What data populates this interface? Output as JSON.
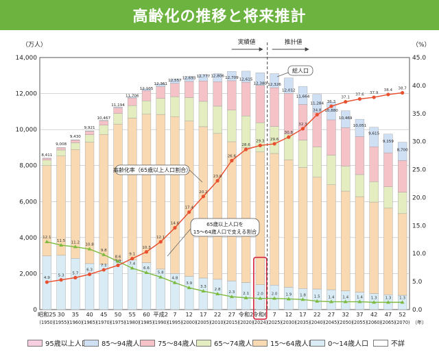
{
  "title": "高齢化の推移と将来推計",
  "chart_data": {
    "type": "bar+line",
    "y_left_unit": "（万人）",
    "y_right_unit": "（%）",
    "y_left_ticks": [
      "0",
      "2,000",
      "4,000",
      "6,000",
      "8,000",
      "10,000",
      "12,000",
      "14,000"
    ],
    "y_right_ticks": [
      "0.0",
      "5.0",
      "10.0",
      "15.0",
      "20.0",
      "25.0",
      "30.0",
      "35.0",
      "40.0",
      "45.0"
    ],
    "ylim_left": [
      0,
      14000
    ],
    "ylim_right": [
      0,
      45
    ],
    "x_unit": "（年）",
    "actual_label": "実績値",
    "projection_label": "推計値",
    "categories": [
      {
        "era": "昭和25",
        "year": "(1950)"
      },
      {
        "era": "30",
        "year": "(1955)"
      },
      {
        "era": "35",
        "year": "(1960)"
      },
      {
        "era": "40",
        "year": "(1965)"
      },
      {
        "era": "45",
        "year": "(1970)"
      },
      {
        "era": "50",
        "year": "(1975)"
      },
      {
        "era": "55",
        "year": "(1980)"
      },
      {
        "era": "60",
        "year": "(1985)"
      },
      {
        "era": "平成2",
        "year": "(1990)"
      },
      {
        "era": "7",
        "year": "(1995)"
      },
      {
        "era": "12",
        "year": "(2000)"
      },
      {
        "era": "17",
        "year": "(2005)"
      },
      {
        "era": "22",
        "year": "(2010)"
      },
      {
        "era": "27",
        "year": "(2015)"
      },
      {
        "era": "令和2",
        "year": "(2020)"
      },
      {
        "era": "令和6",
        "year": "(2024)"
      },
      {
        "era": "7",
        "year": "(2025)"
      },
      {
        "era": "12",
        "year": "(2030)"
      },
      {
        "era": "17",
        "year": "(2035)"
      },
      {
        "era": "22",
        "year": "(2040)"
      },
      {
        "era": "27",
        "year": "(2045)"
      },
      {
        "era": "32",
        "year": "(2050)"
      },
      {
        "era": "37",
        "year": "(2055)"
      },
      {
        "era": "42",
        "year": "(2060)"
      },
      {
        "era": "47",
        "year": "(2065)"
      },
      {
        "era": "52",
        "year": "(2070)"
      }
    ],
    "totals": [
      8411,
      9008,
      9430,
      9921,
      10467,
      11194,
      11706,
      12105,
      12361,
      12557,
      12693,
      12777,
      12806,
      12709,
      12615,
      12380,
      12326,
      12012,
      11664,
      11284,
      10880,
      10469,
      10051,
      9615,
      9159,
      8700
    ],
    "total_labels": [
      "8,411",
      "9,008",
      "9,430",
      "9,921",
      "10,467",
      "11,194",
      "11,706",
      "12,105",
      "12,361",
      "12,557",
      "12,693",
      "12,777",
      "12,806",
      "12,709",
      "12,615",
      "12,380",
      "12,326",
      "12,012",
      "11,664",
      "11,284",
      "10,880",
      "10,469",
      "10,051",
      "9,615",
      "9,159",
      "8,700"
    ],
    "series": [
      {
        "name": "不詳",
        "color": "#ffffff",
        "values": [
          0,
          0,
          0,
          0,
          0,
          0,
          0,
          0,
          0,
          0,
          0,
          0,
          0,
          0,
          0,
          0,
          0,
          0,
          0,
          0,
          0,
          0,
          0,
          0,
          0,
          0
        ]
      },
      {
        "name": "95歳以上人口",
        "color": "#f7cde0",
        "values": [
          0,
          0,
          0,
          0,
          0,
          0,
          0,
          0,
          0,
          0,
          0,
          0,
          0,
          0,
          0,
          0,
          0,
          0,
          0,
          0,
          0,
          0,
          0,
          0,
          0,
          0
        ]
      },
      {
        "name": "85～94歳人口",
        "color": "#cfe0f5",
        "values": [
          10,
          14,
          16,
          21,
          34,
          48,
          69,
          105,
          161,
          229,
          283,
          356,
          452,
          520,
          614,
          700,
          780,
          860,
          1004,
          1004,
          972,
          943,
          965,
          1087,
          1044,
          1020
        ]
      },
      {
        "name": "75～84歳人口",
        "color": "#f5c2c7",
        "values": [
          99,
          119,
          148,
          191,
          240,
          312,
          422,
          566,
          655,
          742,
          901,
          1133,
          1355,
          1632,
          1870,
          2076,
          2155,
          2261,
          1981,
          1916,
          1962,
          2140,
          2110,
          1939,
          1885,
          1760
        ]
      },
      {
        "name": "65～74歳人口",
        "color": "#e3edc0",
        "values": [
          309,
          335,
          376,
          418,
          516,
          592,
          699,
          739,
          892,
          1109,
          1301,
          1407,
          1517,
          1755,
          1747,
          1624,
          1497,
          1428,
          1522,
          1681,
          1643,
          1383,
          1224,
          1133,
          1186,
          1187
        ]
      },
      {
        "name": "15～64歳人口",
        "color": "#f9d9b2",
        "values": [
          5017,
          5517,
          6047,
          6744,
          7212,
          7581,
          7883,
          8251,
          8590,
          8716,
          8622,
          8409,
          8103,
          7728,
          7509,
          7373,
          7310,
          7076,
          6722,
          6213,
          5832,
          5540,
          5307,
          5078,
          4809,
          4535
        ]
      },
      {
        "name": "0～14歳人口",
        "color": "#d9ecf5",
        "values": [
          2979,
          3012,
          2843,
          2553,
          2515,
          2722,
          2751,
          2603,
          2249,
          2001,
          1847,
          1752,
          1680,
          1595,
          1503,
          1383,
          1363,
          1240,
          1169,
          1142,
          1103,
          1041,
          966,
          893,
          826,
          797
        ]
      }
    ],
    "aging_rate_name": "高齢化率（65歳以上人口割合）",
    "aging_rate": [
      4.9,
      5.3,
      5.7,
      6.3,
      7.1,
      7.9,
      9.1,
      10.3,
      12.1,
      14.6,
      17.4,
      20.2,
      23.0,
      26.6,
      28.6,
      29.3,
      29.6,
      30.8,
      32.3,
      34.8,
      36.3,
      37.1,
      37.6,
      37.9,
      38.4,
      38.7
    ],
    "aging_rate_labels": [
      "4.9",
      "5.3",
      "5.7",
      "6.3",
      "7.1",
      "7.9",
      "9.1",
      "10.3",
      "12.1",
      "14.6",
      "17.4",
      "20.2",
      "23.0",
      "26.6",
      "28.6",
      "29.3",
      "29.6",
      "30.8",
      "32.3",
      "34.8",
      "36.3",
      "37.1",
      "37.6",
      "37.9",
      "38.4",
      "38.7"
    ],
    "support_ratio_name": "65歳以上人口を15～64歳人口で支える割合",
    "support_ratio": [
      12.1,
      11.5,
      11.2,
      10.8,
      9.8,
      8.6,
      7.4,
      6.6,
      5.8,
      4.8,
      3.9,
      3.3,
      2.8,
      2.3,
      2.1,
      2.0,
      2.0,
      1.9,
      1.8,
      1.5,
      1.4,
      1.4,
      1.4,
      1.3,
      1.3,
      1.3
    ],
    "support_ratio_labels": [
      "12.1",
      "11.5",
      "11.2",
      "10.8",
      "9.8",
      "8.6",
      "7.4",
      "6.6",
      "5.8",
      "4.8",
      "3.9",
      "3.3",
      "2.8",
      "2.3",
      "2.1",
      "2.0",
      "2.0",
      "1.9",
      "1.8",
      "1.5",
      "1.4",
      "1.4",
      "1.4",
      "1.3",
      "1.3",
      "1.3"
    ],
    "total_population_callout": "総人口",
    "highlight_index": 15
  },
  "legend": [
    {
      "label": "95歳以上人口",
      "color": "#f7cde0"
    },
    {
      "label": "85～94歳人口",
      "color": "#cfe0f5"
    },
    {
      "label": "75～84歳人口",
      "color": "#f5c2c7"
    },
    {
      "label": "65～74歳人口",
      "color": "#e3edc0"
    },
    {
      "label": "15～64歳人口",
      "color": "#f9d9b2"
    },
    {
      "label": "0～14歳人口",
      "color": "#d9ecf5"
    },
    {
      "label": "不詳",
      "color": "#ffffff"
    }
  ],
  "colors": {
    "banner": "#6cb33f",
    "aging_line": "#e8502f",
    "support_line": "#7cba3f",
    "highlight": "#d6334a",
    "arrow": "#4a4a4a"
  }
}
